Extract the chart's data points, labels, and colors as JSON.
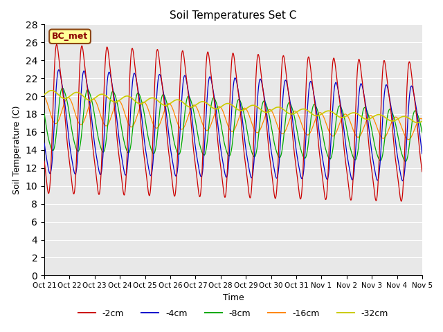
{
  "title": "Soil Temperatures Set C",
  "xlabel": "Time",
  "ylabel": "Soil Temperature (C)",
  "ylim": [
    0,
    28
  ],
  "yticks": [
    0,
    2,
    4,
    6,
    8,
    10,
    12,
    14,
    16,
    18,
    20,
    22,
    24,
    26,
    28
  ],
  "xlabels": [
    "Oct 21",
    "Oct 22",
    "Oct 23",
    "Oct 24",
    "Oct 25",
    "Oct 26",
    "Oct 27",
    "Oct 28",
    "Oct 29",
    "Oct 30",
    "Oct 31",
    "Nov 1",
    "Nov 2",
    "Nov 3",
    "Nov 4",
    "Nov 5"
  ],
  "colors": {
    "-2cm": "#cc0000",
    "-4cm": "#0000cc",
    "-8cm": "#00aa00",
    "-16cm": "#ff8800",
    "-32cm": "#cccc00"
  },
  "legend_label": "BC_met",
  "bg_color": "#e8e8e8",
  "n_days": 15,
  "samples_per_day": 144
}
